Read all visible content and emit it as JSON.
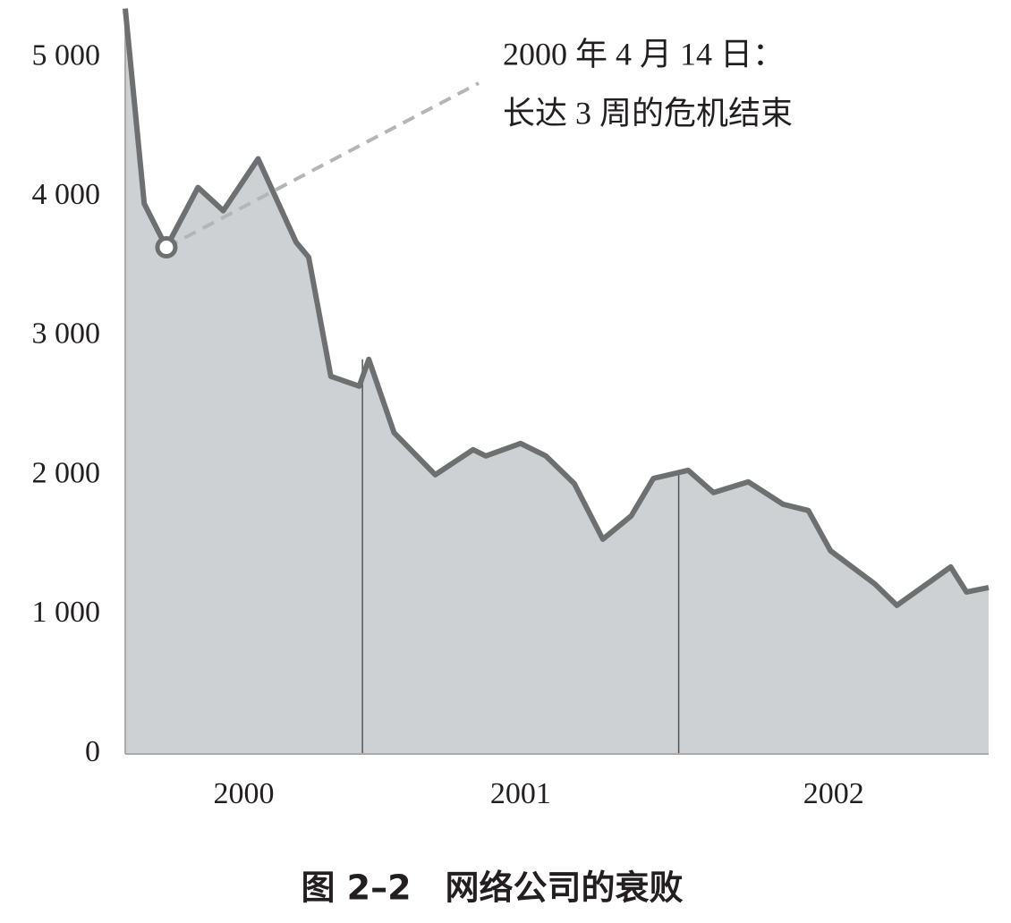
{
  "chart_data": {
    "type": "area",
    "caption": "图 2–2　网络公司的衰败",
    "annotation": [
      "2000 年 4 月 14 日：",
      "长达 3 周的危机结束"
    ],
    "categories": [
      "2000",
      "2001",
      "2002"
    ],
    "x": [
      2000.25,
      2000.31,
      2000.38,
      2000.48,
      2000.56,
      2000.67,
      2000.79,
      2000.83,
      2000.9,
      2000.99,
      2001.02,
      2001.1,
      2001.23,
      2001.35,
      2001.39,
      2001.5,
      2001.58,
      2001.67,
      2001.76,
      2001.85,
      2001.92,
      2002.03,
      2002.11,
      2002.22,
      2002.33,
      2002.41,
      2002.48,
      2002.62,
      2002.69,
      2002.86,
      2002.91,
      2002.98
    ],
    "series": [
      {
        "color": "#6d6f70",
        "fill": "#cdd1d3",
        "values": [
          5353,
          3952,
          3638,
          4068,
          3901,
          4274,
          3676,
          3567,
          2712,
          2641,
          2834,
          2307,
          2005,
          2185,
          2140,
          2230,
          2140,
          1941,
          1542,
          1710,
          1979,
          2037,
          1877,
          1954,
          1793,
          1748,
          1459,
          1221,
          1067,
          1343,
          1163,
          1195
        ]
      }
    ],
    "xlim": [
      2000.25,
      2002.98
    ],
    "xticks": [
      2001,
      2002
    ],
    "ylim": [
      0,
      5350
    ],
    "yticks": [
      {
        "value": 0,
        "label": "0"
      },
      {
        "value": 1000,
        "label": "1 000"
      },
      {
        "value": 2000,
        "label": "2 000"
      },
      {
        "value": 3000,
        "label": "3 000"
      },
      {
        "value": 4000,
        "label": "4 000"
      },
      {
        "value": 5000,
        "label": "5 000"
      }
    ]
  }
}
